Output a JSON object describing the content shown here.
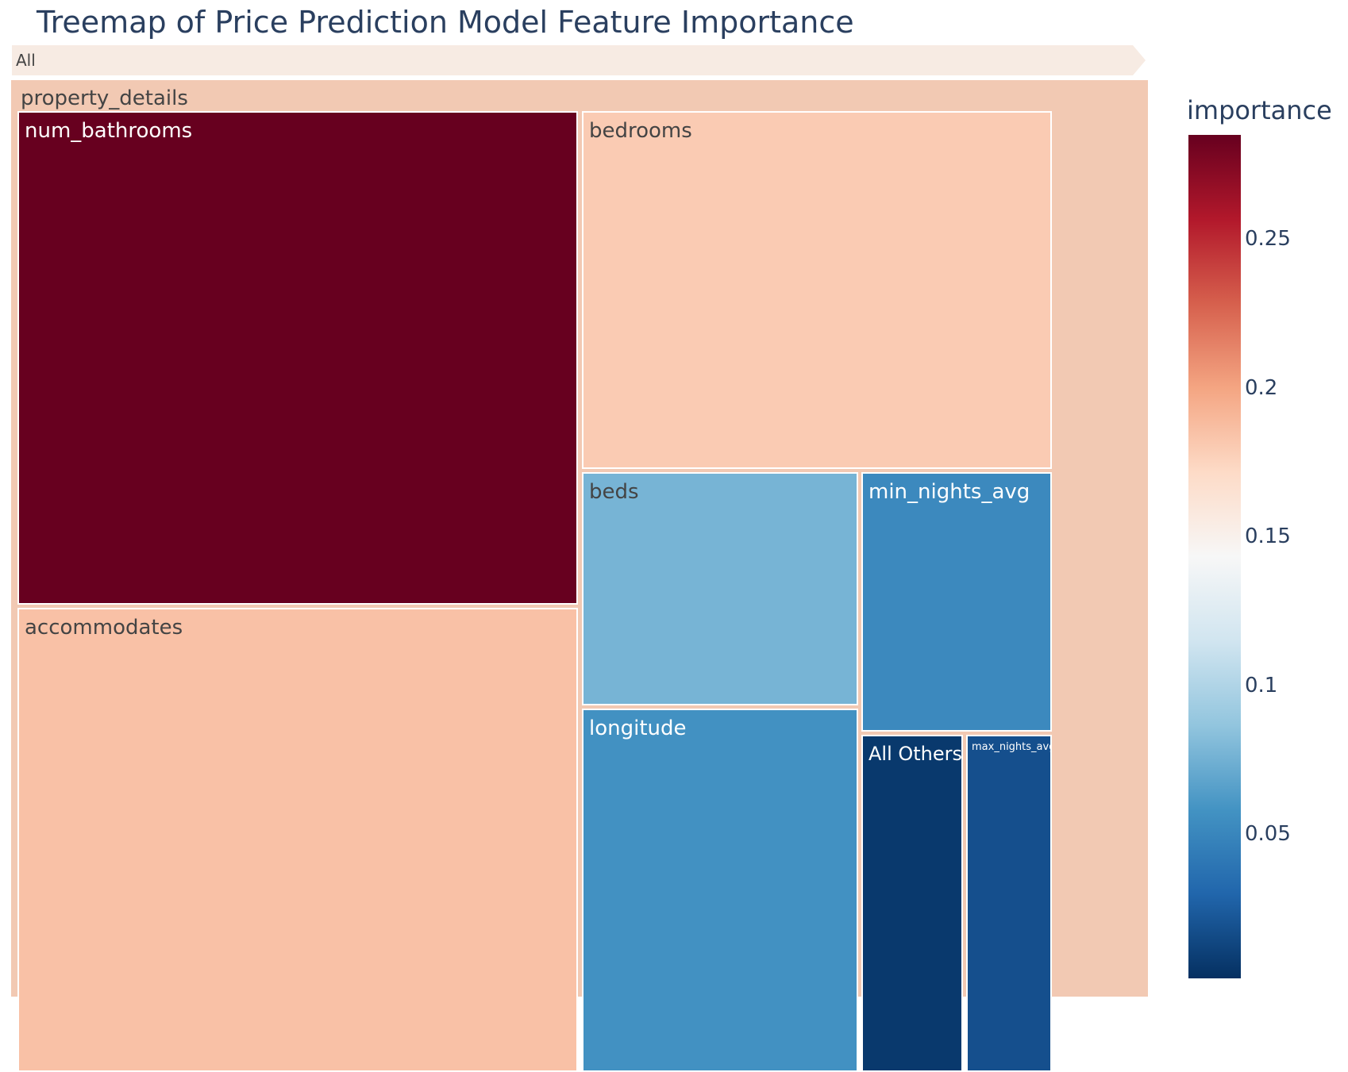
{
  "chart_data": {
    "type": "treemap",
    "title": "Treemap of Price Prediction Model Feature Importance",
    "pathbar": [
      "All"
    ],
    "root": "property_details",
    "items": [
      {
        "name": "num_bathrooms",
        "value": 0.285
      },
      {
        "name": "accommodates",
        "value": 0.185
      },
      {
        "name": "bedrooms",
        "value": 0.18
      },
      {
        "name": "beds",
        "value": 0.077
      },
      {
        "name": "longitude",
        "value": 0.057
      },
      {
        "name": "min_nights_avg",
        "value": 0.052
      },
      {
        "name": "All Others",
        "value": 0.006
      },
      {
        "name": "max_nights_avg",
        "value": 0.018
      }
    ],
    "colorbar": {
      "title": "importance",
      "ticks": [
        0.05,
        0.1,
        0.15,
        0.2,
        0.25
      ],
      "tick_labels": [
        "0.05",
        "0.1",
        "0.15",
        "0.2",
        "0.25"
      ],
      "range": [
        0.0015,
        0.285
      ],
      "colorscale": "RdBu_r"
    }
  },
  "colors": {
    "title": "#2a3f5f",
    "pathbar": "#f7ebe3",
    "root": "#f2c9b3",
    "label_dark": "#444444",
    "label_light": "#ffffff"
  }
}
